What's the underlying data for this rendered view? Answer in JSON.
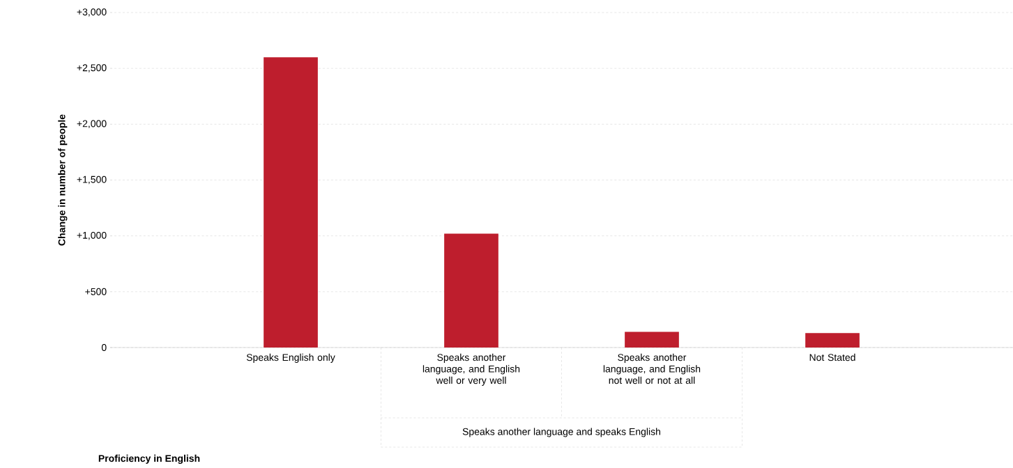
{
  "chart_data": {
    "type": "bar",
    "categories": [
      "Speaks English only",
      "Speaks another language, and English well or very well",
      "Speaks another language, and English not well or not at all",
      "Not Stated"
    ],
    "values": [
      2600,
      1020,
      140,
      130
    ],
    "color": "#be1e2d",
    "ylabel": "Change in number of people",
    "annotations": [
      "Speaks another language and speaks English",
      "Proficiency in English"
    ],
    "ylim": [
      0,
      3000
    ],
    "yticks": [
      {
        "value": 0,
        "label": "0"
      },
      {
        "value": 500,
        "label": "+500"
      },
      {
        "value": 1000,
        "label": "+1,000"
      },
      {
        "value": 1500,
        "label": "+1,500"
      },
      {
        "value": 2000,
        "label": "+2,000"
      },
      {
        "value": 2500,
        "label": "+2,500"
      },
      {
        "value": 3000,
        "label": "+3,000"
      }
    ],
    "grid": "y"
  }
}
